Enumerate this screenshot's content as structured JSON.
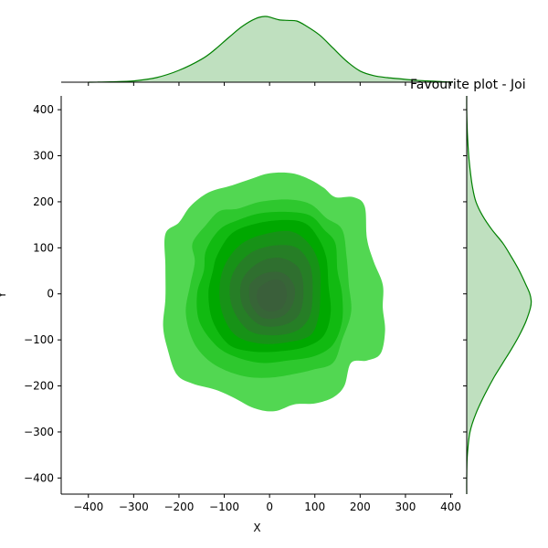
{
  "chart_data": {
    "type": "kde_joint",
    "title": "Favourite plot - Joi",
    "xlabel": "X",
    "ylabel": "Y",
    "xlim": [
      -460,
      405
    ],
    "ylim": [
      -435,
      430
    ],
    "xticks": [
      -400,
      -300,
      -200,
      -100,
      0,
      100,
      200,
      300,
      400
    ],
    "yticks": [
      -400,
      -300,
      -200,
      -100,
      0,
      100,
      200,
      300,
      400
    ],
    "grid": false,
    "colors": {
      "levels": [
        "#52d752",
        "#2ec82e",
        "#11ba11",
        "#00a800",
        "#179217",
        "#267e26",
        "#2f6f2f",
        "#376537",
        "#3a5f3a"
      ],
      "marginal_line": "#008000",
      "marginal_fill": "#bfe0bf"
    },
    "contours": [
      [
        [
          -230,
          130
        ],
        [
          -200,
          155
        ],
        [
          -175,
          190
        ],
        [
          -135,
          220
        ],
        [
          -85,
          235
        ],
        [
          -40,
          250
        ],
        [
          0,
          262
        ],
        [
          50,
          262
        ],
        [
          90,
          248
        ],
        [
          120,
          230
        ],
        [
          145,
          210
        ],
        [
          185,
          210
        ],
        [
          210,
          190
        ],
        [
          215,
          120
        ],
        [
          230,
          70
        ],
        [
          250,
          20
        ],
        [
          250,
          -30
        ],
        [
          255,
          -80
        ],
        [
          245,
          -130
        ],
        [
          215,
          -145
        ],
        [
          180,
          -150
        ],
        [
          165,
          -200
        ],
        [
          140,
          -225
        ],
        [
          100,
          -238
        ],
        [
          55,
          -240
        ],
        [
          10,
          -255
        ],
        [
          -35,
          -248
        ],
        [
          -80,
          -225
        ],
        [
          -120,
          -208
        ],
        [
          -170,
          -195
        ],
        [
          -205,
          -175
        ],
        [
          -225,
          -120
        ],
        [
          -235,
          -70
        ],
        [
          -230,
          -10
        ],
        [
          -230,
          60
        ]
      ],
      [
        [
          -170,
          110
        ],
        [
          -140,
          150
        ],
        [
          -110,
          180
        ],
        [
          -70,
          185
        ],
        [
          -20,
          200
        ],
        [
          40,
          205
        ],
        [
          90,
          195
        ],
        [
          125,
          165
        ],
        [
          160,
          140
        ],
        [
          170,
          80
        ],
        [
          175,
          20
        ],
        [
          180,
          -40
        ],
        [
          160,
          -100
        ],
        [
          140,
          -150
        ],
        [
          95,
          -165
        ],
        [
          50,
          -175
        ],
        [
          0,
          -182
        ],
        [
          -50,
          -180
        ],
        [
          -100,
          -165
        ],
        [
          -140,
          -140
        ],
        [
          -170,
          -100
        ],
        [
          -185,
          -40
        ],
        [
          -175,
          20
        ],
        [
          -165,
          70
        ]
      ],
      [
        [
          -140,
          95
        ],
        [
          -110,
          140
        ],
        [
          -70,
          160
        ],
        [
          -20,
          175
        ],
        [
          40,
          178
        ],
        [
          90,
          170
        ],
        [
          120,
          140
        ],
        [
          145,
          110
        ],
        [
          150,
          50
        ],
        [
          160,
          0
        ],
        [
          160,
          -60
        ],
        [
          140,
          -110
        ],
        [
          100,
          -135
        ],
        [
          40,
          -145
        ],
        [
          -20,
          -150
        ],
        [
          -80,
          -135
        ],
        [
          -120,
          -110
        ],
        [
          -155,
          -60
        ],
        [
          -160,
          0
        ],
        [
          -145,
          50
        ]
      ],
      [
        [
          -115,
          85
        ],
        [
          -85,
          130
        ],
        [
          -40,
          150
        ],
        [
          20,
          160
        ],
        [
          75,
          155
        ],
        [
          105,
          125
        ],
        [
          125,
          80
        ],
        [
          130,
          20
        ],
        [
          135,
          -40
        ],
        [
          120,
          -90
        ],
        [
          80,
          -115
        ],
        [
          20,
          -125
        ],
        [
          -40,
          -125
        ],
        [
          -90,
          -110
        ],
        [
          -125,
          -60
        ],
        [
          -135,
          0
        ],
        [
          -125,
          50
        ]
      ],
      [
        [
          -95,
          70
        ],
        [
          -60,
          110
        ],
        [
          -10,
          130
        ],
        [
          50,
          135
        ],
        [
          90,
          105
        ],
        [
          110,
          60
        ],
        [
          112,
          0
        ],
        [
          108,
          -50
        ],
        [
          90,
          -90
        ],
        [
          40,
          -105
        ],
        [
          -20,
          -108
        ],
        [
          -75,
          -90
        ],
        [
          -105,
          -40
        ],
        [
          -110,
          20
        ]
      ],
      [
        [
          -75,
          55
        ],
        [
          -40,
          90
        ],
        [
          10,
          105
        ],
        [
          60,
          100
        ],
        [
          90,
          60
        ],
        [
          95,
          0
        ],
        [
          88,
          -50
        ],
        [
          60,
          -80
        ],
        [
          10,
          -90
        ],
        [
          -45,
          -80
        ],
        [
          -80,
          -35
        ],
        [
          -88,
          15
        ]
      ],
      [
        [
          -55,
          40
        ],
        [
          -20,
          70
        ],
        [
          25,
          78
        ],
        [
          65,
          55
        ],
        [
          75,
          5
        ],
        [
          65,
          -45
        ],
        [
          30,
          -68
        ],
        [
          -20,
          -68
        ],
        [
          -55,
          -35
        ],
        [
          -65,
          5
        ]
      ],
      [
        [
          -40,
          25
        ],
        [
          -10,
          45
        ],
        [
          30,
          45
        ],
        [
          55,
          15
        ],
        [
          50,
          -25
        ],
        [
          25,
          -50
        ],
        [
          -15,
          -52
        ],
        [
          -40,
          -25
        ],
        [
          -45,
          5
        ]
      ],
      [
        [
          -25,
          10
        ],
        [
          5,
          30
        ],
        [
          30,
          25
        ],
        [
          38,
          -5
        ],
        [
          25,
          -32
        ],
        [
          -5,
          -38
        ],
        [
          -25,
          -20
        ]
      ]
    ],
    "marginal_x": {
      "x": [
        -400,
        -380,
        -350,
        -300,
        -250,
        -200,
        -150,
        -120,
        -90,
        -60,
        -30,
        -10,
        0,
        20,
        40,
        60,
        80,
        110,
        140,
        170,
        200,
        230,
        260,
        290,
        320,
        350,
        380,
        405
      ],
      "density": [
        0.0,
        0.002,
        0.005,
        0.02,
        0.07,
        0.18,
        0.35,
        0.5,
        0.68,
        0.85,
        0.97,
        1.0,
        0.99,
        0.95,
        0.94,
        0.93,
        0.86,
        0.72,
        0.52,
        0.32,
        0.17,
        0.1,
        0.07,
        0.05,
        0.03,
        0.02,
        0.01,
        0.0
      ]
    },
    "marginal_y": {
      "y": [
        -435,
        -400,
        -350,
        -300,
        -260,
        -220,
        -180,
        -150,
        -120,
        -90,
        -60,
        -30,
        -15,
        0,
        20,
        50,
        80,
        110,
        140,
        170,
        200,
        230,
        260,
        300,
        350,
        400,
        430
      ],
      "density": [
        0.0,
        0.0,
        0.01,
        0.05,
        0.14,
        0.27,
        0.42,
        0.55,
        0.68,
        0.8,
        0.9,
        0.97,
        0.98,
        0.96,
        0.9,
        0.8,
        0.68,
        0.55,
        0.38,
        0.24,
        0.14,
        0.09,
        0.06,
        0.03,
        0.01,
        0.0,
        0.0
      ]
    }
  }
}
